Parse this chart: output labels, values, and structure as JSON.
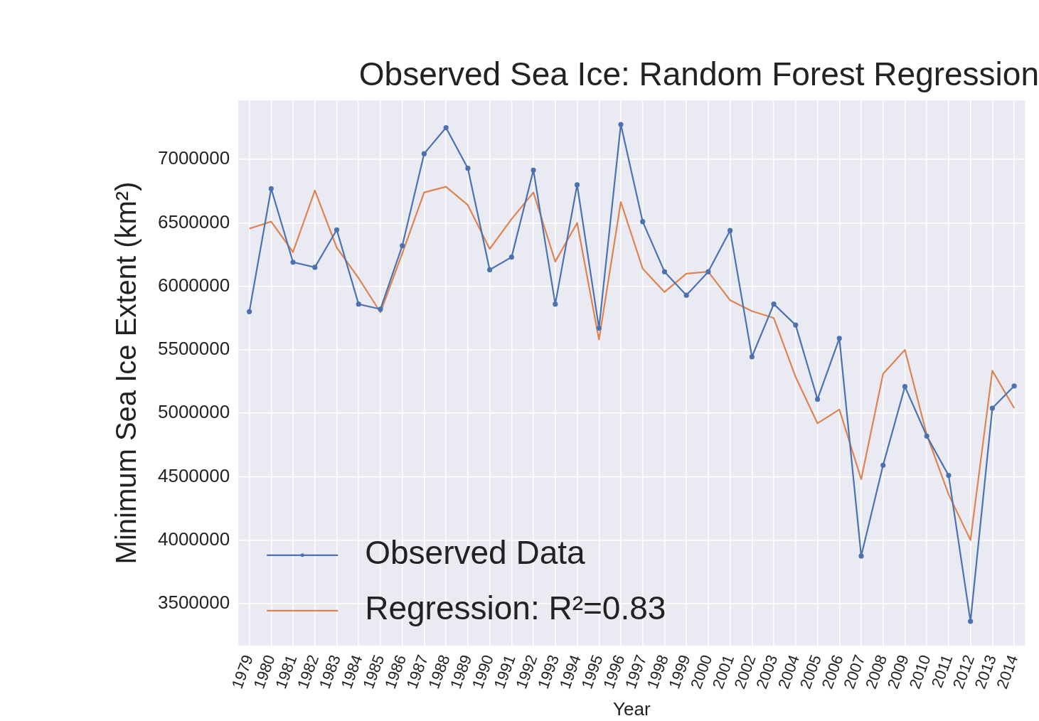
{
  "chart_data": {
    "type": "line",
    "title": "Observed Sea Ice: Random Forest Regression",
    "xlabel": "Year",
    "ylabel": "Minimum Sea Ice Extent (km²)",
    "categories": [
      "1979",
      "1980",
      "1981",
      "1982",
      "1983",
      "1984",
      "1985",
      "1986",
      "1987",
      "1988",
      "1989",
      "1990",
      "1991",
      "1992",
      "1993",
      "1994",
      "1995",
      "1996",
      "1997",
      "1998",
      "1999",
      "2000",
      "2001",
      "2002",
      "2003",
      "2004",
      "2005",
      "2006",
      "2007",
      "2008",
      "2009",
      "2010",
      "2011",
      "2012",
      "2013",
      "2014"
    ],
    "series": [
      {
        "name": "Observed Data",
        "color": "#4c72b0",
        "marker": "circle",
        "values": [
          5800000,
          6770000,
          6190000,
          6150000,
          6445000,
          5860000,
          5820000,
          6320000,
          7045000,
          7250000,
          6930000,
          6130000,
          6230000,
          6915000,
          5860000,
          6800000,
          5670000,
          7275000,
          6510000,
          6115000,
          5930000,
          6115000,
          6440000,
          5445000,
          5860000,
          5695000,
          5110000,
          5590000,
          3875000,
          4590000,
          5210000,
          4820000,
          4510000,
          3360000,
          5040000,
          5215000
        ]
      },
      {
        "name": "Regression: R²=0.83",
        "color": "#dd8452",
        "marker": "none",
        "values": [
          6455000,
          6510000,
          6270000,
          6755000,
          6305000,
          6065000,
          5795000,
          6260000,
          6740000,
          6785000,
          6640000,
          6295000,
          6530000,
          6740000,
          6195000,
          6500000,
          5580000,
          6665000,
          6140000,
          5955000,
          6100000,
          6115000,
          5890000,
          5805000,
          5750000,
          5285000,
          4920000,
          5030000,
          4480000,
          5310000,
          5500000,
          4830000,
          4360000,
          4000000,
          5335000,
          5040000
        ]
      }
    ],
    "ylim": [
      3170000,
      7465000
    ],
    "yticks": [
      3500000,
      4000000,
      4500000,
      5000000,
      5500000,
      6000000,
      6500000,
      7000000
    ],
    "grid": true,
    "legend": "bottom left"
  }
}
